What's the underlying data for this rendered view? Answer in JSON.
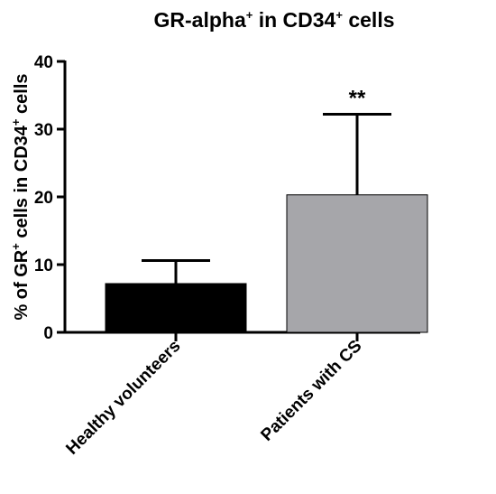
{
  "chart_data": {
    "type": "bar",
    "title": {
      "main": "GR-alpha",
      "sup1": "+",
      "rest": " in CD34",
      "sup2": "+",
      "end": " cells"
    },
    "ylabel": {
      "main": "% of GR",
      "sup1": "+",
      "rest": " cells in CD34",
      "sup2": "+",
      "end": " cells"
    },
    "xlabel": "",
    "categories": [
      "Healthy volunteers",
      "Patients with CS"
    ],
    "values": [
      7.2,
      20.3
    ],
    "errors_upper": [
      10.6,
      32.2
    ],
    "colors": [
      "#000000",
      "#a6a6aa"
    ],
    "annotations": [
      "",
      "**"
    ],
    "ylim": [
      0,
      40
    ],
    "yticks": [
      0,
      10,
      20,
      30,
      40
    ],
    "grid": false,
    "legend": "none"
  }
}
